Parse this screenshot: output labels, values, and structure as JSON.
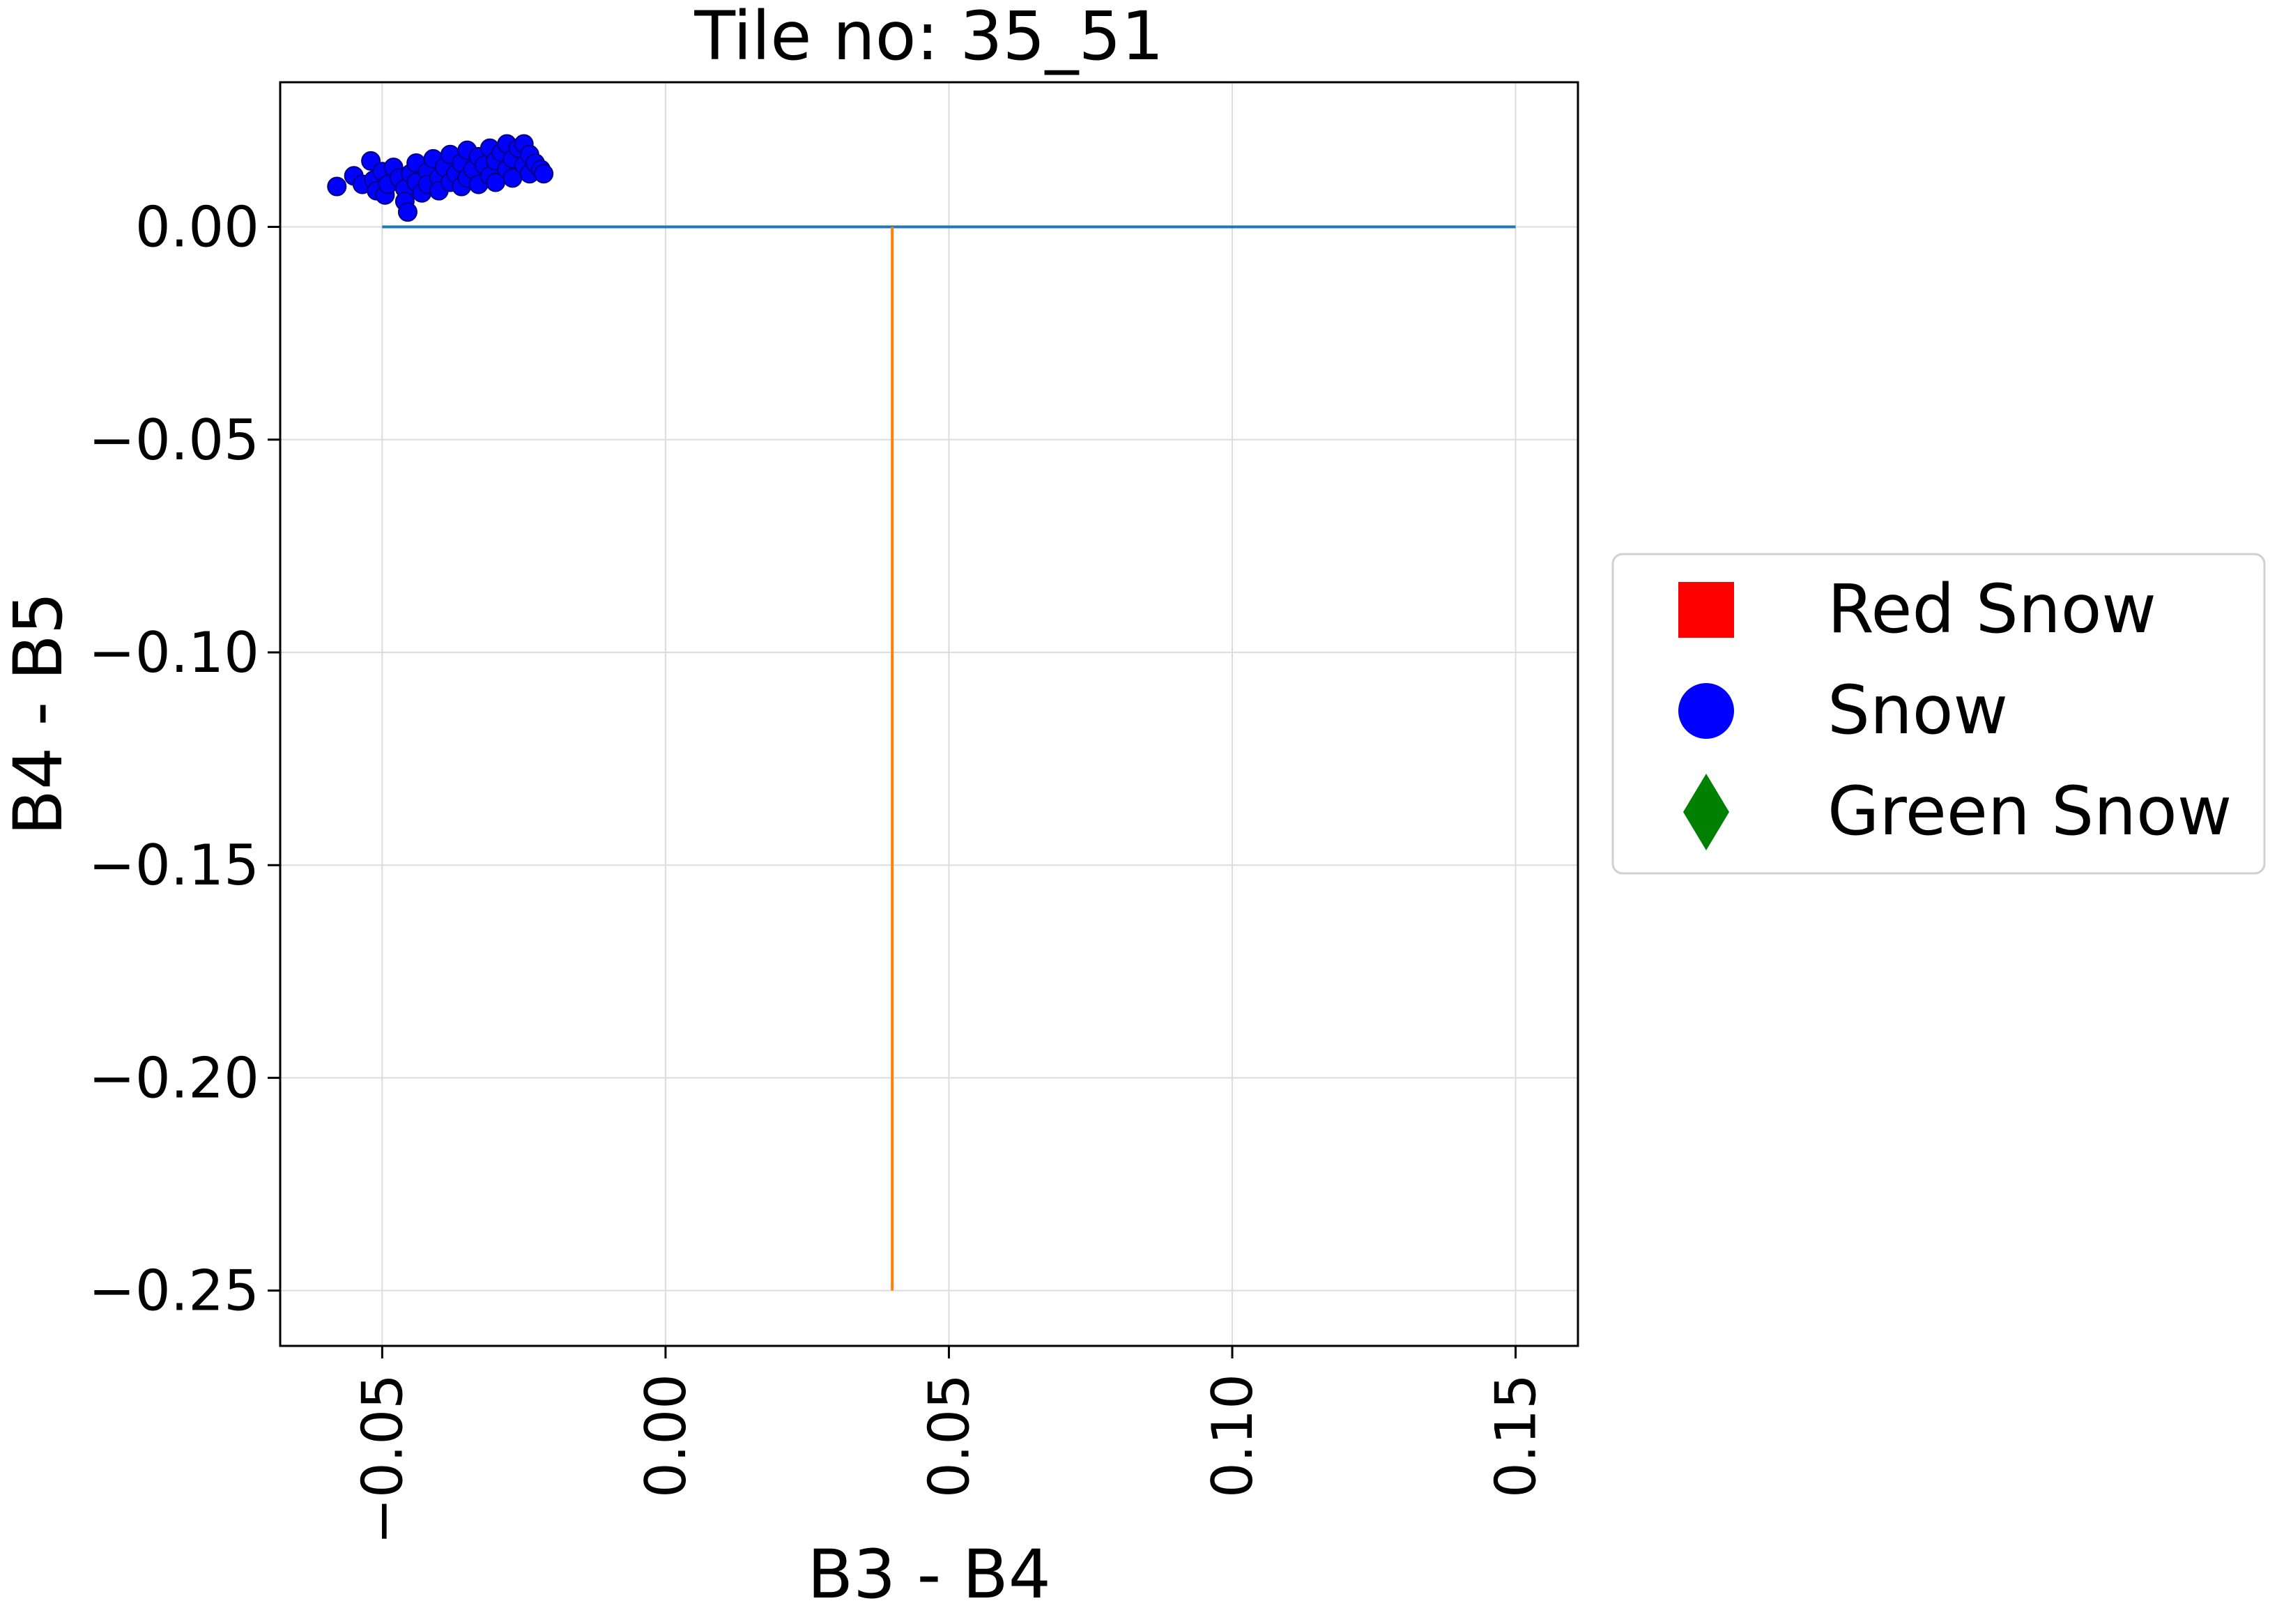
{
  "chart_data": {
    "type": "scatter",
    "title": "Tile no: 35_51",
    "xlabel": "B3 - B4",
    "ylabel": "B4 - B5",
    "xlim": [
      -0.068,
      0.161
    ],
    "ylim": [
      -0.263,
      0.034
    ],
    "xticks": [
      -0.05,
      0.0,
      0.05,
      0.1,
      0.15
    ],
    "xtick_labels": [
      "−0.05",
      "0.00",
      "0.05",
      "0.10",
      "0.15"
    ],
    "yticks": [
      0.0,
      -0.05,
      -0.1,
      -0.15,
      -0.2,
      -0.25
    ],
    "ytick_labels": [
      "0.00",
      "−0.05",
      "−0.10",
      "−0.15",
      "−0.20",
      "−0.25"
    ],
    "grid": true,
    "legend_position": "outside-right",
    "legend": [
      {
        "label": "Red Snow",
        "marker": "square",
        "color": "#ff0000"
      },
      {
        "label": "Snow",
        "marker": "circle",
        "color": "#0000ff"
      },
      {
        "label": "Green Snow",
        "marker": "diamond",
        "color": "#008000"
      }
    ],
    "lines": [
      {
        "name": "horizontal-line",
        "color": "#1f77b4",
        "x": [
          -0.05,
          0.15
        ],
        "y": [
          0.0,
          0.0
        ]
      },
      {
        "name": "vertical-line",
        "color": "#ff7f0e",
        "x": [
          0.04,
          0.04
        ],
        "y": [
          0.0,
          -0.25
        ]
      }
    ],
    "series": [
      {
        "marker": "circle",
        "color": "#0000ff",
        "edge_color": "#000080",
        "points": [
          [
            -0.058,
            0.0095
          ],
          [
            -0.055,
            0.012
          ],
          [
            -0.0535,
            0.01
          ],
          [
            -0.052,
            0.0155
          ],
          [
            -0.0515,
            0.011
          ],
          [
            -0.051,
            0.0085
          ],
          [
            -0.05,
            0.013
          ],
          [
            -0.0495,
            0.0075
          ],
          [
            -0.049,
            0.01
          ],
          [
            -0.048,
            0.014
          ],
          [
            -0.047,
            0.0115
          ],
          [
            -0.046,
            0.009
          ],
          [
            -0.046,
            0.006
          ],
          [
            -0.0455,
            0.0035
          ],
          [
            -0.045,
            0.0125
          ],
          [
            -0.044,
            0.0105
          ],
          [
            -0.044,
            0.015
          ],
          [
            -0.043,
            0.008
          ],
          [
            -0.042,
            0.013
          ],
          [
            -0.042,
            0.01
          ],
          [
            -0.041,
            0.016
          ],
          [
            -0.04,
            0.0115
          ],
          [
            -0.04,
            0.0085
          ],
          [
            -0.039,
            0.014
          ],
          [
            -0.038,
            0.0105
          ],
          [
            -0.038,
            0.017
          ],
          [
            -0.037,
            0.0125
          ],
          [
            -0.036,
            0.0095
          ],
          [
            -0.036,
            0.015
          ],
          [
            -0.035,
            0.018
          ],
          [
            -0.035,
            0.0115
          ],
          [
            -0.034,
            0.0135
          ],
          [
            -0.033,
            0.01
          ],
          [
            -0.033,
            0.0165
          ],
          [
            -0.032,
            0.0145
          ],
          [
            -0.031,
            0.012
          ],
          [
            -0.031,
            0.0185
          ],
          [
            -0.03,
            0.0155
          ],
          [
            -0.03,
            0.0105
          ],
          [
            -0.029,
            0.0175
          ],
          [
            -0.028,
            0.0135
          ],
          [
            -0.028,
            0.0195
          ],
          [
            -0.027,
            0.016
          ],
          [
            -0.027,
            0.0115
          ],
          [
            -0.026,
            0.0185
          ],
          [
            -0.025,
            0.0145
          ],
          [
            -0.025,
            0.0195
          ],
          [
            -0.024,
            0.0125
          ],
          [
            -0.024,
            0.017
          ],
          [
            -0.023,
            0.015
          ],
          [
            -0.022,
            0.0135
          ],
          [
            -0.0215,
            0.0125
          ]
        ]
      }
    ]
  }
}
